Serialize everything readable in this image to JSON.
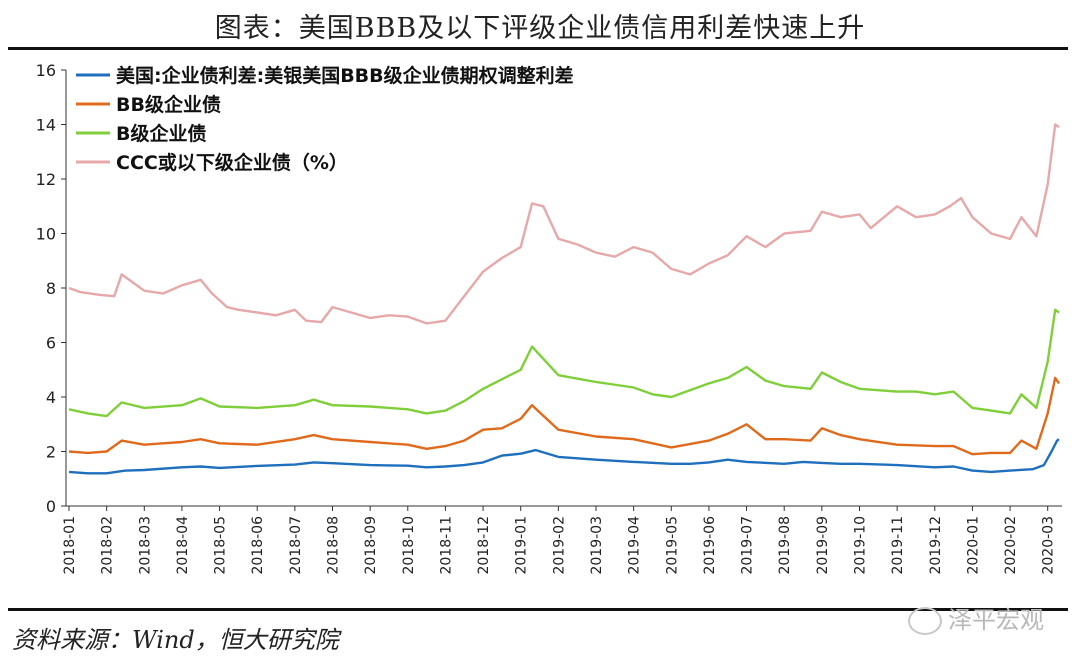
{
  "header": {
    "title": "图表：美国BBB及以下评级企业债信用利差快速上升"
  },
  "footer": {
    "source": "资料来源：Wind，恒大研究院",
    "watermark": "泽平宏观"
  },
  "chart_data": {
    "type": "line",
    "title": "图表：美国BBB及以下评级企业债信用利差快速上升",
    "xlabel": "",
    "ylabel": "",
    "ylim": [
      0,
      16
    ],
    "yticks": [
      "0",
      "2",
      "4",
      "6",
      "8",
      "10",
      "12",
      "14",
      "16"
    ],
    "x_tick_labels": [
      "2018-01",
      "2018-02",
      "2018-03",
      "2018-04",
      "2018-05",
      "2018-06",
      "2018-07",
      "2018-08",
      "2018-09",
      "2018-10",
      "2018-11",
      "2018-12",
      "2019-01",
      "2019-02",
      "2019-03",
      "2019-04",
      "2019-05",
      "2019-06",
      "2019-07",
      "2019-08",
      "2019-09",
      "2019-10",
      "2019-11",
      "2019-12",
      "2020-01",
      "2020-02",
      "2020-03"
    ],
    "legend_position": "top-left",
    "series": [
      {
        "name": "美国:企业债利差:美银美国BBB级企业债期权调整利差",
        "color": "#1f6fbf",
        "points": [
          [
            0,
            1.25
          ],
          [
            0.5,
            1.2
          ],
          [
            1,
            1.2
          ],
          [
            1.5,
            1.3
          ],
          [
            2,
            1.32
          ],
          [
            3,
            1.42
          ],
          [
            3.5,
            1.45
          ],
          [
            4,
            1.4
          ],
          [
            5,
            1.47
          ],
          [
            6,
            1.52
          ],
          [
            6.5,
            1.6
          ],
          [
            7,
            1.57
          ],
          [
            8,
            1.5
          ],
          [
            9,
            1.48
          ],
          [
            9.5,
            1.42
          ],
          [
            10,
            1.45
          ],
          [
            10.5,
            1.5
          ],
          [
            11,
            1.6
          ],
          [
            11.5,
            1.85
          ],
          [
            12,
            1.92
          ],
          [
            12.4,
            2.05
          ],
          [
            13,
            1.8
          ],
          [
            14,
            1.7
          ],
          [
            15,
            1.62
          ],
          [
            16,
            1.55
          ],
          [
            16.5,
            1.55
          ],
          [
            17,
            1.6
          ],
          [
            17.5,
            1.7
          ],
          [
            18,
            1.62
          ],
          [
            19,
            1.55
          ],
          [
            19.5,
            1.62
          ],
          [
            20,
            1.58
          ],
          [
            20.5,
            1.55
          ],
          [
            21,
            1.55
          ],
          [
            22,
            1.5
          ],
          [
            23,
            1.42
          ],
          [
            23.5,
            1.45
          ],
          [
            24,
            1.3
          ],
          [
            24.5,
            1.25
          ],
          [
            25,
            1.3
          ],
          [
            25.6,
            1.35
          ],
          [
            25.9,
            1.5
          ],
          [
            26.1,
            2.0
          ],
          [
            26.25,
            2.4
          ],
          [
            26.3,
            2.45
          ]
        ]
      },
      {
        "name": "BB级企业债",
        "color": "#e06a1b",
        "points": [
          [
            0,
            2.0
          ],
          [
            0.5,
            1.95
          ],
          [
            1,
            2.0
          ],
          [
            1.4,
            2.4
          ],
          [
            2,
            2.25
          ],
          [
            2.5,
            2.3
          ],
          [
            3,
            2.35
          ],
          [
            3.5,
            2.45
          ],
          [
            4,
            2.3
          ],
          [
            5,
            2.25
          ],
          [
            6,
            2.45
          ],
          [
            6.5,
            2.6
          ],
          [
            7,
            2.45
          ],
          [
            8,
            2.35
          ],
          [
            9,
            2.25
          ],
          [
            9.5,
            2.1
          ],
          [
            10,
            2.2
          ],
          [
            10.5,
            2.4
          ],
          [
            11,
            2.8
          ],
          [
            11.5,
            2.85
          ],
          [
            12,
            3.2
          ],
          [
            12.3,
            3.7
          ],
          [
            13,
            2.8
          ],
          [
            14,
            2.55
          ],
          [
            15,
            2.45
          ],
          [
            15.5,
            2.3
          ],
          [
            16,
            2.15
          ],
          [
            17,
            2.4
          ],
          [
            17.5,
            2.65
          ],
          [
            18,
            3.0
          ],
          [
            18.5,
            2.45
          ],
          [
            19,
            2.45
          ],
          [
            19.7,
            2.4
          ],
          [
            20,
            2.85
          ],
          [
            20.5,
            2.6
          ],
          [
            21,
            2.45
          ],
          [
            22,
            2.25
          ],
          [
            23,
            2.2
          ],
          [
            23.5,
            2.2
          ],
          [
            24,
            1.9
          ],
          [
            24.5,
            1.95
          ],
          [
            25,
            1.95
          ],
          [
            25.3,
            2.4
          ],
          [
            25.7,
            2.1
          ],
          [
            26,
            3.4
          ],
          [
            26.2,
            4.7
          ],
          [
            26.3,
            4.5
          ]
        ]
      },
      {
        "name": "B级企业债",
        "color": "#7fcf3a",
        "points": [
          [
            0,
            3.55
          ],
          [
            0.5,
            3.4
          ],
          [
            1,
            3.3
          ],
          [
            1.4,
            3.8
          ],
          [
            2,
            3.6
          ],
          [
            3,
            3.7
          ],
          [
            3.5,
            3.95
          ],
          [
            4,
            3.65
          ],
          [
            5,
            3.6
          ],
          [
            6,
            3.7
          ],
          [
            6.5,
            3.9
          ],
          [
            7,
            3.7
          ],
          [
            8,
            3.65
          ],
          [
            9,
            3.55
          ],
          [
            9.5,
            3.4
          ],
          [
            10,
            3.5
          ],
          [
            10.5,
            3.85
          ],
          [
            11,
            4.3
          ],
          [
            11.5,
            4.65
          ],
          [
            12,
            5.0
          ],
          [
            12.3,
            5.85
          ],
          [
            13,
            4.8
          ],
          [
            14,
            4.55
          ],
          [
            15,
            4.35
          ],
          [
            15.5,
            4.1
          ],
          [
            16,
            4.0
          ],
          [
            17,
            4.5
          ],
          [
            17.5,
            4.7
          ],
          [
            18,
            5.1
          ],
          [
            18.5,
            4.6
          ],
          [
            19,
            4.4
          ],
          [
            19.7,
            4.3
          ],
          [
            20,
            4.9
          ],
          [
            20.5,
            4.55
          ],
          [
            21,
            4.3
          ],
          [
            22,
            4.2
          ],
          [
            22.5,
            4.2
          ],
          [
            23,
            4.1
          ],
          [
            23.5,
            4.2
          ],
          [
            24,
            3.6
          ],
          [
            24.5,
            3.5
          ],
          [
            25,
            3.4
          ],
          [
            25.3,
            4.1
          ],
          [
            25.7,
            3.6
          ],
          [
            26,
            5.3
          ],
          [
            26.2,
            7.2
          ],
          [
            26.3,
            7.1
          ]
        ]
      },
      {
        "name": "CCC或以下级企业债（%）",
        "color": "#e6a8a8",
        "points": [
          [
            0,
            8.0
          ],
          [
            0.3,
            7.85
          ],
          [
            0.8,
            7.75
          ],
          [
            1.2,
            7.7
          ],
          [
            1.4,
            8.5
          ],
          [
            1.7,
            8.2
          ],
          [
            2,
            7.9
          ],
          [
            2.5,
            7.8
          ],
          [
            3,
            8.1
          ],
          [
            3.5,
            8.3
          ],
          [
            3.8,
            7.8
          ],
          [
            4.2,
            7.3
          ],
          [
            4.5,
            7.2
          ],
          [
            5,
            7.1
          ],
          [
            5.5,
            7.0
          ],
          [
            6,
            7.2
          ],
          [
            6.3,
            6.8
          ],
          [
            6.7,
            6.75
          ],
          [
            7,
            7.3
          ],
          [
            7.5,
            7.1
          ],
          [
            8,
            6.9
          ],
          [
            8.5,
            7.0
          ],
          [
            9,
            6.95
          ],
          [
            9.5,
            6.7
          ],
          [
            10,
            6.8
          ],
          [
            10.5,
            7.7
          ],
          [
            11,
            8.6
          ],
          [
            11.5,
            9.1
          ],
          [
            12,
            9.5
          ],
          [
            12.3,
            11.1
          ],
          [
            12.6,
            11.0
          ],
          [
            13,
            9.8
          ],
          [
            13.5,
            9.6
          ],
          [
            14,
            9.3
          ],
          [
            14.5,
            9.15
          ],
          [
            15,
            9.5
          ],
          [
            15.5,
            9.3
          ],
          [
            16,
            8.7
          ],
          [
            16.5,
            8.5
          ],
          [
            17,
            8.9
          ],
          [
            17.5,
            9.2
          ],
          [
            18,
            9.9
          ],
          [
            18.5,
            9.5
          ],
          [
            19,
            10.0
          ],
          [
            19.7,
            10.1
          ],
          [
            20,
            10.8
          ],
          [
            20.5,
            10.6
          ],
          [
            21,
            10.7
          ],
          [
            21.3,
            10.2
          ],
          [
            22,
            11.0
          ],
          [
            22.5,
            10.6
          ],
          [
            23,
            10.7
          ],
          [
            23.4,
            11.0
          ],
          [
            23.7,
            11.3
          ],
          [
            24,
            10.6
          ],
          [
            24.5,
            10.0
          ],
          [
            25,
            9.8
          ],
          [
            25.3,
            10.6
          ],
          [
            25.7,
            9.9
          ],
          [
            26,
            11.8
          ],
          [
            26.2,
            14.0
          ],
          [
            26.3,
            13.9
          ]
        ]
      }
    ]
  }
}
